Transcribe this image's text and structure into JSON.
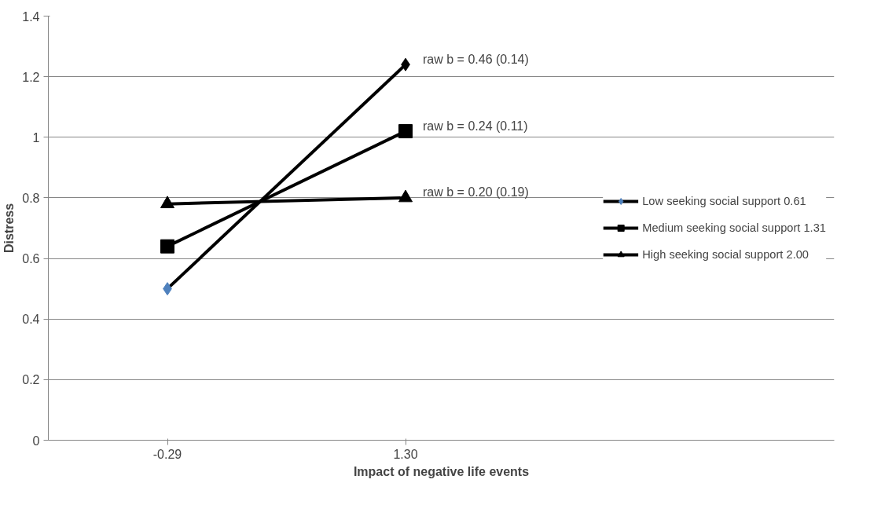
{
  "chart_data": {
    "type": "line",
    "xlabel": "Impact of negative life events",
    "ylabel": "Distress",
    "categories": [
      "-0.29",
      "1.30"
    ],
    "series": [
      {
        "name": "Low seeking social support 0.61",
        "color": "#000000",
        "colors": [
          "#4f81bd",
          "#000000"
        ],
        "marker": "diamond",
        "values": [
          0.5,
          1.24
        ]
      },
      {
        "name": "Medium seeking social support 1.31",
        "color": "#000000",
        "marker": "square",
        "values": [
          0.64,
          1.02
        ]
      },
      {
        "name": "High seeking social support 2.00",
        "color": "#000000",
        "marker": "triangle",
        "values": [
          0.78,
          0.8
        ]
      }
    ],
    "ylim": [
      0,
      1.4
    ],
    "yticks": [
      0,
      0.2,
      0.4,
      0.6,
      0.8,
      1,
      1.2,
      1.4
    ],
    "grid": "y",
    "legend": "right",
    "annotations": [
      {
        "text": "raw b = 0.46 (0.14)",
        "x": "1.30",
        "y": 1.24
      },
      {
        "text": "raw b = 0.24 (0.11)",
        "x": "1.30",
        "y": 1.02
      },
      {
        "text": "raw b = 0.20 (0.19)",
        "x": "1.30",
        "y": 0.8
      }
    ]
  }
}
